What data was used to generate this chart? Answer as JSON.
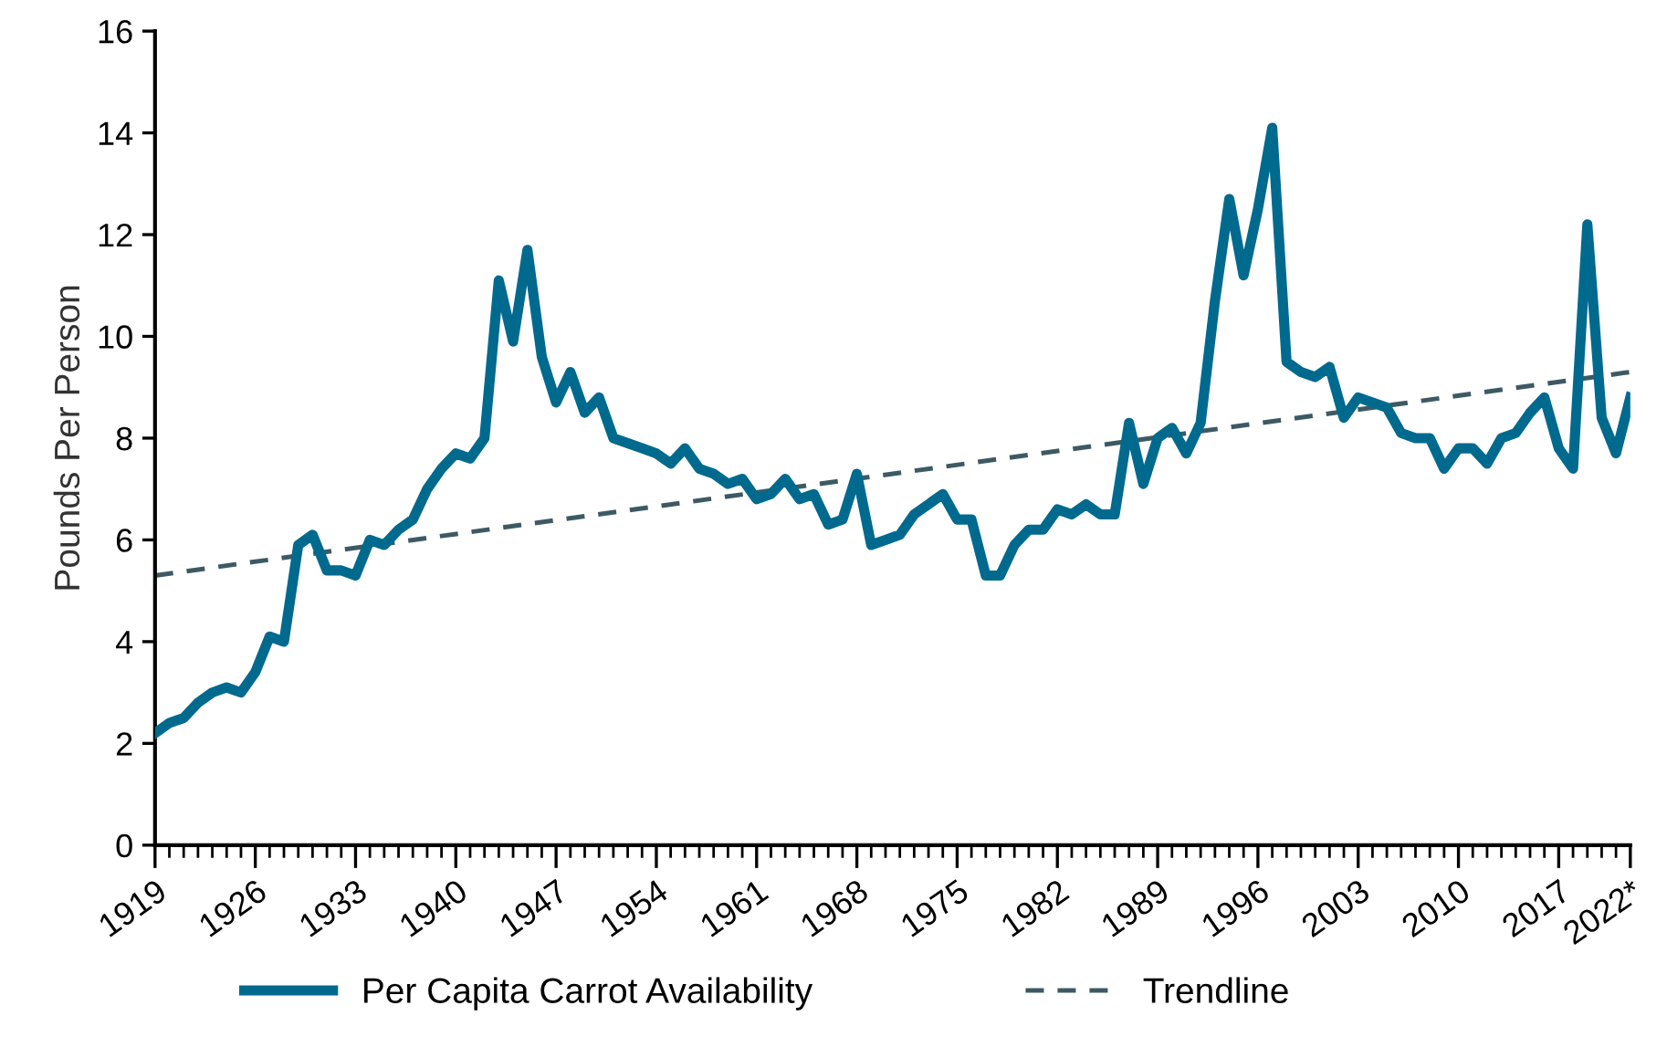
{
  "chart_data": {
    "type": "line",
    "ylabel": "Pounds Per Person",
    "x": [
      1919,
      1920,
      1921,
      1922,
      1923,
      1924,
      1925,
      1926,
      1927,
      1928,
      1929,
      1930,
      1931,
      1932,
      1933,
      1934,
      1935,
      1936,
      1937,
      1938,
      1939,
      1940,
      1941,
      1942,
      1943,
      1944,
      1945,
      1946,
      1947,
      1948,
      1949,
      1950,
      1951,
      1952,
      1953,
      1954,
      1955,
      1956,
      1957,
      1958,
      1959,
      1960,
      1961,
      1962,
      1963,
      1964,
      1965,
      1966,
      1967,
      1968,
      1969,
      1970,
      1971,
      1972,
      1973,
      1974,
      1975,
      1976,
      1977,
      1978,
      1979,
      1980,
      1981,
      1982,
      1983,
      1984,
      1985,
      1986,
      1987,
      1988,
      1989,
      1990,
      1991,
      1992,
      1993,
      1994,
      1995,
      1996,
      1997,
      1998,
      1999,
      2000,
      2001,
      2002,
      2003,
      2004,
      2005,
      2006,
      2007,
      2008,
      2009,
      2010,
      2011,
      2012,
      2013,
      2014,
      2015,
      2016,
      2017,
      2018,
      2019,
      2020,
      2021,
      2022
    ],
    "series": [
      {
        "name": "Per Capita Carrot Availability",
        "color": "#006a8e",
        "line_style": "solid",
        "values": [
          2.2,
          2.4,
          2.5,
          2.8,
          3.0,
          3.1,
          3.0,
          3.4,
          4.1,
          4.0,
          5.9,
          6.1,
          5.4,
          5.4,
          5.3,
          6.0,
          5.9,
          6.2,
          6.4,
          7.0,
          7.4,
          7.7,
          7.6,
          8.0,
          11.1,
          9.9,
          11.7,
          9.6,
          8.7,
          9.3,
          8.5,
          8.8,
          8.0,
          7.9,
          7.8,
          7.7,
          7.5,
          7.8,
          7.4,
          7.3,
          7.1,
          7.2,
          6.8,
          6.9,
          7.2,
          6.8,
          6.9,
          6.3,
          6.4,
          7.3,
          5.9,
          6.0,
          6.1,
          6.5,
          6.7,
          6.9,
          6.4,
          6.4,
          5.3,
          5.3,
          5.9,
          6.2,
          6.2,
          6.6,
          6.5,
          6.7,
          6.5,
          6.5,
          8.3,
          7.1,
          8.0,
          8.2,
          7.7,
          8.3,
          10.7,
          12.7,
          11.2,
          12.5,
          14.1,
          9.5,
          9.3,
          9.2,
          9.4,
          8.4,
          8.8,
          8.7,
          8.6,
          8.1,
          8.0,
          8.0,
          7.4,
          7.8,
          7.8,
          7.5,
          8.0,
          8.1,
          8.5,
          8.8,
          7.8,
          7.4,
          12.2,
          8.4,
          7.7,
          8.8
        ]
      },
      {
        "name": "Trendline",
        "color": "#3d5a64",
        "line_style": "dashed",
        "x": [
          1919,
          2022
        ],
        "values": [
          5.3,
          9.3
        ]
      }
    ],
    "xlim": [
      1919,
      2022
    ],
    "xticks": [
      1919,
      1926,
      1933,
      1940,
      1947,
      1954,
      1961,
      1968,
      1975,
      1982,
      1989,
      1996,
      2003,
      2010,
      2017,
      {
        "value": 2022,
        "label": "2022*"
      }
    ],
    "ylim": [
      0,
      16
    ],
    "yticks": [
      0,
      2,
      4,
      6,
      8,
      10,
      12,
      14,
      16
    ],
    "grid": false,
    "legend": "bottom",
    "marker": "none"
  }
}
